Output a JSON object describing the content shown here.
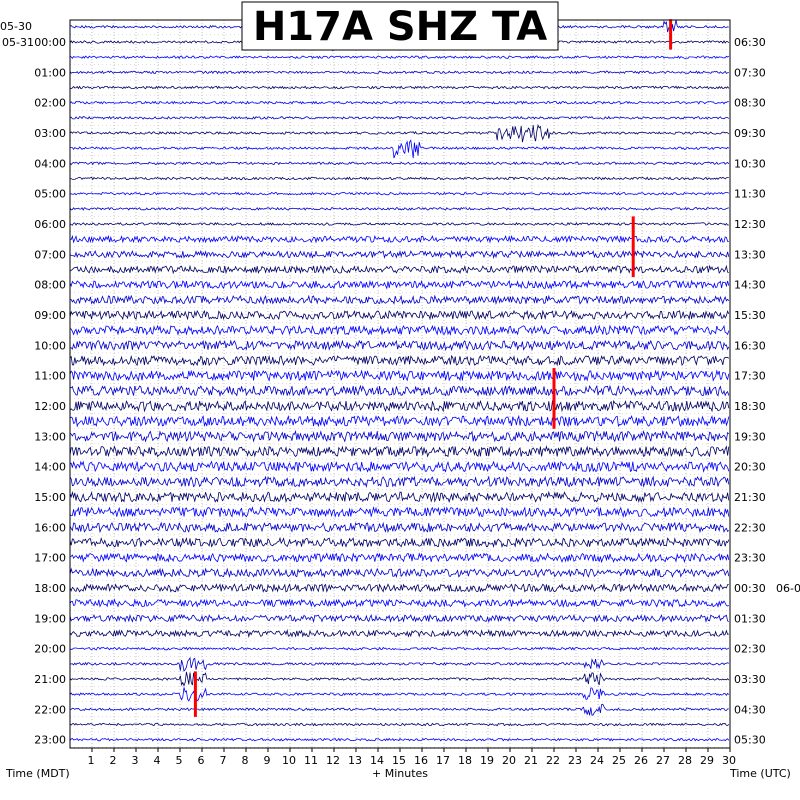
{
  "chart_data": {
    "type": "line",
    "title": "H17A SHZ TA",
    "xlabel": "+ Minutes",
    "left_axis_label": "Time (MDT)",
    "right_axis_label": "Time (UTC)",
    "xlim": [
      0,
      30
    ],
    "x_ticks": [
      1,
      2,
      3,
      4,
      5,
      6,
      7,
      8,
      9,
      10,
      11,
      12,
      13,
      14,
      15,
      16,
      17,
      18,
      19,
      20,
      21,
      22,
      23,
      24,
      25,
      26,
      27,
      28,
      29,
      30
    ],
    "grid": true,
    "trace_interval_minutes": 30,
    "trace_colors": [
      "#0000cc",
      "#000066",
      "#0000ff"
    ],
    "event_marker_color": "#ff0000",
    "left_date_labels": [
      {
        "text": "05-30",
        "row": 0
      },
      {
        "text": "05-31",
        "row": 1
      }
    ],
    "right_date_labels": [
      {
        "text": "06-0",
        "row": 37
      }
    ],
    "left_time_labels": [
      "00:00",
      "01:00",
      "02:00",
      "03:00",
      "04:00",
      "05:00",
      "06:00",
      "07:00",
      "08:00",
      "09:00",
      "10:00",
      "11:00",
      "12:00",
      "13:00",
      "14:00",
      "15:00",
      "16:00",
      "17:00",
      "18:00",
      "19:00",
      "20:00",
      "21:00",
      "22:00",
      "23:00"
    ],
    "right_time_labels": [
      "06:30",
      "07:30",
      "08:30",
      "09:30",
      "10:30",
      "11:30",
      "12:30",
      "13:30",
      "14:30",
      "15:30",
      "16:30",
      "17:30",
      "18:30",
      "19:30",
      "20:30",
      "21:30",
      "22:30",
      "23:30",
      "00:30",
      "01:30",
      "02:30",
      "03:30",
      "04:30",
      "05:30"
    ],
    "events": [
      {
        "row": 0,
        "minute": 27.3,
        "span_traces": 2
      },
      {
        "row": 13,
        "minute": 25.6,
        "span_traces": 4
      },
      {
        "row": 23,
        "minute": 22.0,
        "span_traces": 4
      },
      {
        "row": 43,
        "minute": 5.7,
        "span_traces": 3
      }
    ]
  }
}
